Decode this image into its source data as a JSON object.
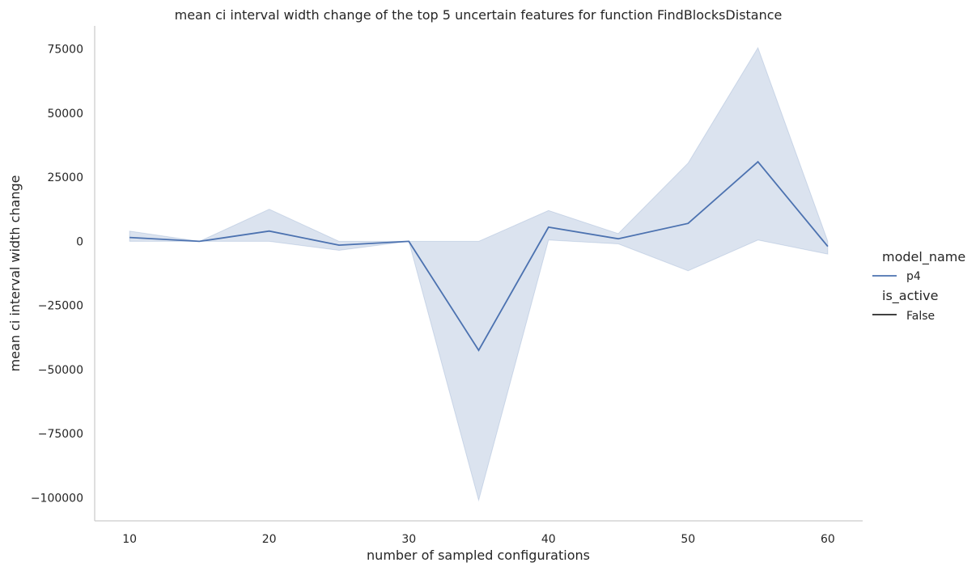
{
  "chart_data": {
    "type": "line",
    "title": "mean ci interval width change of the top 5 uncertain features for function FindBlocksDistance",
    "xlabel": "number of sampled configurations",
    "ylabel": "mean ci interval width change",
    "xlim": [
      7.5,
      62.5
    ],
    "ylim": [
      -109000,
      84000
    ],
    "x_ticks": [
      10,
      20,
      30,
      40,
      50,
      60
    ],
    "y_ticks": [
      75000,
      50000,
      25000,
      0,
      -25000,
      -50000,
      -75000,
      -100000
    ],
    "y_tick_labels": [
      "75000",
      "50000",
      "25000",
      "0",
      "−25000",
      "−50000",
      "−75000",
      "−100000"
    ],
    "grid": false,
    "legend_position": "right",
    "legend": {
      "hue_title": "model_name",
      "hue_entries": [
        {
          "label": "p4",
          "color": "#4c72b0"
        }
      ],
      "style_title": "is_active",
      "style_entries": [
        {
          "label": "False",
          "color": "#262626"
        }
      ]
    },
    "series": [
      {
        "name": "p4",
        "color": "#4c72b0",
        "x": [
          10,
          15,
          20,
          25,
          30,
          35,
          40,
          45,
          50,
          55,
          60
        ],
        "values": [
          1500,
          0,
          4000,
          -1500,
          0,
          -42500,
          5500,
          1000,
          7000,
          31000,
          -2000
        ],
        "ci_lower": [
          0,
          0,
          0,
          -3500,
          0,
          -101000,
          500,
          -1000,
          -11500,
          500,
          -5000
        ],
        "ci_upper": [
          4000,
          0,
          12500,
          0,
          0,
          0,
          12000,
          3000,
          30500,
          75500,
          0
        ]
      }
    ]
  }
}
